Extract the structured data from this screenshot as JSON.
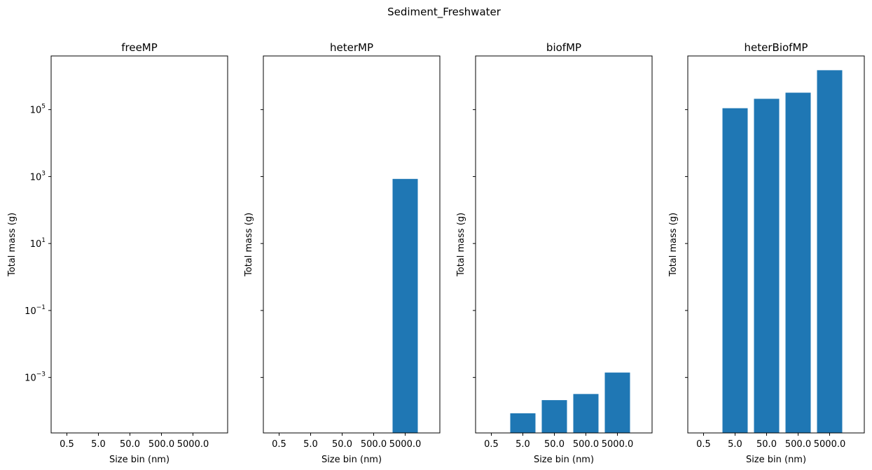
{
  "figure": {
    "suptitle": "Sediment_Freshwater"
  },
  "colors": {
    "bar": "#1f77b4",
    "axes": "#000000",
    "background": "#ffffff"
  },
  "chart_data": [
    {
      "type": "bar",
      "title": "freeMP",
      "xlabel": "Size bin (nm)",
      "ylabel": "Total mass (g)",
      "categories": [
        "0.5",
        "5.0",
        "50.0",
        "500.0",
        "5000.0"
      ],
      "values": [
        0,
        0,
        0,
        0,
        0
      ],
      "yscale": "log",
      "ylim": [
        2.2e-05,
        4000000
      ],
      "ytick_labels_shown": true
    },
    {
      "type": "bar",
      "title": "heterMP",
      "xlabel": "Size bin (nm)",
      "ylabel": "Total mass (g)",
      "categories": [
        "0.5",
        "5.0",
        "50.0",
        "500.0",
        "5000.0"
      ],
      "values": [
        0,
        0,
        0,
        0,
        850
      ],
      "yscale": "log",
      "ylim": [
        2.2e-05,
        4000000
      ],
      "ytick_labels_shown": false
    },
    {
      "type": "bar",
      "title": "biofMP",
      "xlabel": "Size bin (nm)",
      "ylabel": "Total mass (g)",
      "categories": [
        "0.5",
        "5.0",
        "50.0",
        "500.0",
        "5000.0"
      ],
      "values": [
        0,
        8.5e-05,
        0.00021,
        0.00032,
        0.0014
      ],
      "yscale": "log",
      "ylim": [
        2.2e-05,
        4000000
      ],
      "ytick_labels_shown": false
    },
    {
      "type": "bar",
      "title": "heterBiofMP",
      "xlabel": "Size bin (nm)",
      "ylabel": "Total mass (g)",
      "categories": [
        "0.5",
        "5.0",
        "50.0",
        "500.0",
        "5000.0"
      ],
      "values": [
        0,
        110000,
        210000,
        320000,
        1500000
      ],
      "yscale": "log",
      "ylim": [
        2.2e-05,
        4000000
      ],
      "ytick_labels_shown": false
    }
  ],
  "yticks": [
    {
      "base": "10",
      "exp": "5",
      "value": 100000
    },
    {
      "base": "10",
      "exp": "3",
      "value": 1000
    },
    {
      "base": "10",
      "exp": "1",
      "value": 10
    },
    {
      "base": "10",
      "exp": "−1",
      "value": 0.1
    },
    {
      "base": "10",
      "exp": "−3",
      "value": 0.001
    }
  ]
}
